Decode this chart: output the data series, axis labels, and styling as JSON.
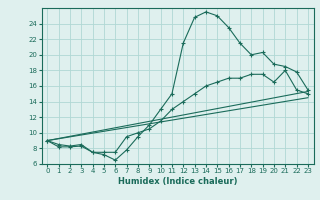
{
  "xlabel": "Humidex (Indice chaleur)",
  "bg_color": "#dff0ee",
  "grid_color": "#b0d8d4",
  "line_color": "#1a6b5a",
  "xlim": [
    -0.5,
    23.5
  ],
  "ylim": [
    6,
    26
  ],
  "xticks": [
    0,
    1,
    2,
    3,
    4,
    5,
    6,
    7,
    8,
    9,
    10,
    11,
    12,
    13,
    14,
    15,
    16,
    17,
    18,
    19,
    20,
    21,
    22,
    23
  ],
  "yticks": [
    6,
    8,
    10,
    12,
    14,
    16,
    18,
    20,
    22,
    24
  ],
  "curve1_x": [
    0,
    1,
    2,
    3,
    4,
    5,
    6,
    7,
    8,
    9,
    10,
    11,
    12,
    13,
    14,
    15,
    16,
    17,
    18,
    19,
    20,
    21,
    22,
    23
  ],
  "curve1_y": [
    9.0,
    8.2,
    8.2,
    8.3,
    7.5,
    7.2,
    6.5,
    7.8,
    9.5,
    11.0,
    13.0,
    15.0,
    21.5,
    24.8,
    25.5,
    25.0,
    23.5,
    21.5,
    20.0,
    20.3,
    18.8,
    18.5,
    17.8,
    15.5
  ],
  "curve2_x": [
    0,
    1,
    2,
    3,
    4,
    5,
    6,
    7,
    8,
    9,
    10,
    11,
    12,
    13,
    14,
    15,
    16,
    17,
    18,
    19,
    20,
    21,
    22,
    23
  ],
  "curve2_y": [
    9.0,
    8.5,
    8.3,
    8.5,
    7.5,
    7.5,
    7.5,
    9.5,
    10.0,
    10.5,
    11.5,
    13.0,
    14.0,
    15.0,
    16.0,
    16.5,
    17.0,
    17.0,
    17.5,
    17.5,
    16.5,
    18.0,
    15.5,
    15.0
  ],
  "curve3_x": [
    0,
    23
  ],
  "curve3_y": [
    9.0,
    15.3
  ],
  "curve4_x": [
    0,
    23
  ],
  "curve4_y": [
    9.0,
    14.5
  ]
}
